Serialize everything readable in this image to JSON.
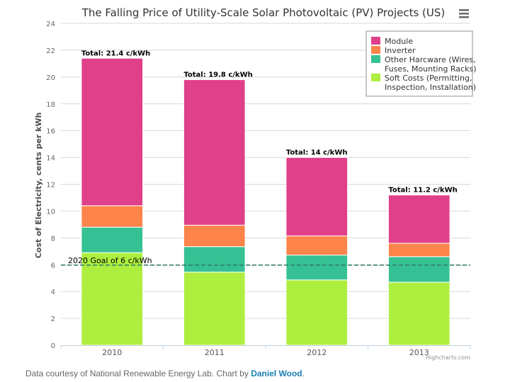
{
  "footer": {
    "prefix": "Data courtesy of National Renewable Energy Lab. Chart by ",
    "author": "Daniel Wood",
    "suffix": "."
  },
  "menu_icon": "hamburger-menu-icon",
  "chart_data": {
    "type": "bar",
    "stacked": true,
    "title": "The Falling Price of Utility-Scale Solar Photovoltaic (PV) Projects (US)",
    "xlabel": "",
    "ylabel": "Cost of Electricity, cents per kWh",
    "ylim": [
      0,
      24
    ],
    "yticks": [
      0,
      2,
      4,
      6,
      8,
      10,
      12,
      14,
      16,
      18,
      20,
      22,
      24
    ],
    "grid": true,
    "legend_position": "top-right",
    "categories": [
      "2010",
      "2011",
      "2012",
      "2013"
    ],
    "series": [
      {
        "name": "Module",
        "color": "#e0408a",
        "values": [
          11.0,
          10.85,
          5.85,
          3.6
        ]
      },
      {
        "name": "Inverter",
        "color": "#fd844a",
        "values": [
          1.6,
          1.6,
          1.43,
          1.0
        ]
      },
      {
        "name": "Other Hardware (Wires, Fuses, Mounting Racks)",
        "color": "#36c194",
        "values": [
          1.9,
          1.9,
          1.85,
          1.9
        ]
      },
      {
        "name": "Soft Costs (Permitting, Inspection, Installation)",
        "color": "#adee3f",
        "values": [
          6.9,
          5.45,
          4.87,
          4.7
        ]
      }
    ],
    "stack_order_bottom_to_top": [
      "Soft Costs (Permitting, Inspection, Installation)",
      "Other Hardware (Wires, Fuses, Mounting Racks)",
      "Inverter",
      "Module"
    ],
    "legend_lines": [
      [
        "Module"
      ],
      [
        "Inverter"
      ],
      [
        "Other Harcware (Wires,",
        "Fuses, Mounting Racks)"
      ],
      [
        "Soft Costs (Permitting,",
        "Inspection, Installation)"
      ]
    ],
    "totals": [
      21.4,
      19.8,
      14,
      11.2
    ],
    "total_labels": [
      "Total: 21.4 c/kWh",
      "Total: 19.8 c/kWh",
      "Total: 14 c/kWh",
      "Total: 11.2 c/kWh"
    ],
    "annotations": [
      {
        "type": "plotline",
        "value": 6,
        "label": "2020 Goal of 6 c/kWh",
        "style": "dashed",
        "color": "#2e7a6a"
      }
    ],
    "credits": "Highcharts.com"
  }
}
